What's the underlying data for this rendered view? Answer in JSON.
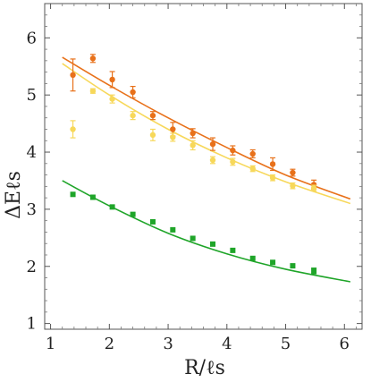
{
  "chart_data": {
    "type": "scatter",
    "xlabel": "R/ℓs",
    "ylabel": "ΔEℓs",
    "xlim": [
      0.9,
      6.3
    ],
    "ylim": [
      0.9,
      6.6
    ],
    "xticks": [
      1,
      2,
      3,
      4,
      5,
      6
    ],
    "yticks": [
      1,
      2,
      3,
      4,
      5,
      6
    ],
    "grid": false,
    "series": [
      {
        "color": "#e8711a",
        "marker": "circle",
        "points": [
          {
            "x": 1.38,
            "y": 5.35,
            "err": 0.28
          },
          {
            "x": 1.72,
            "y": 5.64,
            "err": 0.07
          },
          {
            "x": 2.05,
            "y": 5.27,
            "err": 0.14
          },
          {
            "x": 2.4,
            "y": 5.05,
            "err": 0.1
          },
          {
            "x": 2.74,
            "y": 4.64,
            "err": 0.07
          },
          {
            "x": 3.08,
            "y": 4.4,
            "err": 0.12
          },
          {
            "x": 3.42,
            "y": 4.33,
            "err": 0.08
          },
          {
            "x": 3.76,
            "y": 4.14,
            "err": 0.11
          },
          {
            "x": 4.1,
            "y": 4.03,
            "err": 0.08
          },
          {
            "x": 4.44,
            "y": 3.97,
            "err": 0.07
          },
          {
            "x": 4.78,
            "y": 3.79,
            "err": 0.11
          },
          {
            "x": 5.12,
            "y": 3.64,
            "err": 0.06
          },
          {
            "x": 5.48,
            "y": 3.43,
            "err": 0.08
          }
        ],
        "fit": [
          [
            1.2,
            5.66
          ],
          [
            2.0,
            5.17
          ],
          [
            3.0,
            4.6
          ],
          [
            4.0,
            4.08
          ],
          [
            5.0,
            3.6
          ],
          [
            6.1,
            3.18
          ]
        ]
      },
      {
        "color": "#f7d85a",
        "marker": "circle",
        "points": [
          {
            "x": 1.38,
            "y": 4.4,
            "err": 0.15
          },
          {
            "x": 1.72,
            "y": 5.07,
            "err": 0.04
          },
          {
            "x": 2.05,
            "y": 4.93,
            "err": 0.07
          },
          {
            "x": 2.4,
            "y": 4.64,
            "err": 0.07
          },
          {
            "x": 2.74,
            "y": 4.3,
            "err": 0.1
          },
          {
            "x": 3.08,
            "y": 4.26,
            "err": 0.07
          },
          {
            "x": 3.42,
            "y": 4.12,
            "err": 0.08
          },
          {
            "x": 3.76,
            "y": 3.86,
            "err": 0.06
          },
          {
            "x": 4.1,
            "y": 3.83,
            "err": 0.06
          },
          {
            "x": 4.44,
            "y": 3.71,
            "err": 0.05
          },
          {
            "x": 4.78,
            "y": 3.55,
            "err": 0.05
          },
          {
            "x": 5.12,
            "y": 3.41,
            "err": 0.05
          },
          {
            "x": 5.48,
            "y": 3.37,
            "err": 0.05
          }
        ],
        "fit": [
          [
            1.2,
            5.55
          ],
          [
            2.0,
            5.0
          ],
          [
            3.0,
            4.4
          ],
          [
            4.0,
            3.9
          ],
          [
            5.0,
            3.48
          ],
          [
            6.1,
            3.1
          ]
        ]
      },
      {
        "color": "#1fa529",
        "marker": "square",
        "points": [
          {
            "x": 1.38,
            "y": 3.26,
            "err": 0
          },
          {
            "x": 1.72,
            "y": 3.21,
            "err": 0
          },
          {
            "x": 2.05,
            "y": 3.04,
            "err": 0
          },
          {
            "x": 2.4,
            "y": 2.91,
            "err": 0
          },
          {
            "x": 2.74,
            "y": 2.78,
            "err": 0
          },
          {
            "x": 3.08,
            "y": 2.64,
            "err": 0
          },
          {
            "x": 3.42,
            "y": 2.49,
            "err": 0
          },
          {
            "x": 3.76,
            "y": 2.39,
            "err": 0
          },
          {
            "x": 4.1,
            "y": 2.28,
            "err": 0
          },
          {
            "x": 4.44,
            "y": 2.14,
            "err": 0
          },
          {
            "x": 4.78,
            "y": 2.07,
            "err": 0
          },
          {
            "x": 5.12,
            "y": 2.01,
            "err": 0
          },
          {
            "x": 5.48,
            "y": 1.92,
            "err": 0.05
          }
        ],
        "fit": [
          [
            1.2,
            3.5
          ],
          [
            2.0,
            3.06
          ],
          [
            3.0,
            2.58
          ],
          [
            4.0,
            2.22
          ],
          [
            5.0,
            1.95
          ],
          [
            6.1,
            1.73
          ]
        ]
      }
    ]
  }
}
